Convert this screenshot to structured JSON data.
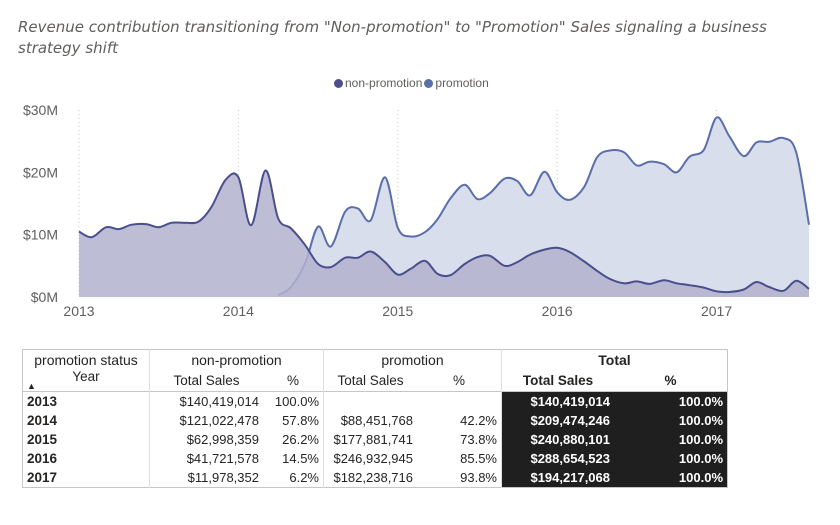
{
  "title": "Revenue contribution transitioning from \"Non-promotion\" to \"Promotion\" Sales signaling a business strategy shift",
  "legend": [
    {
      "name": "non-promotion",
      "color": "#4a4e8c"
    },
    {
      "name": "promotion",
      "color": "#5a6eaa"
    }
  ],
  "chart_data": {
    "type": "area",
    "title": "Revenue contribution transitioning from \"Non-promotion\" to \"Promotion\" Sales signaling a business strategy shift",
    "xlabel": "",
    "ylabel": "",
    "x_ticks": [
      "2013",
      "2014",
      "2015",
      "2016",
      "2017"
    ],
    "y_ticks": [
      "$0M",
      "$10M",
      "$20M",
      "$30M"
    ],
    "ylim": [
      0,
      30
    ],
    "xlim": [
      2013.0,
      2017.58
    ],
    "grid": "vertical dotted",
    "legend_position": "top-center",
    "series": [
      {
        "name": "non-promotion",
        "color": "#4a4e8c",
        "fill": "#b3b2cf",
        "points": [
          [
            2013.0,
            10.5
          ],
          [
            2013.08,
            9.6
          ],
          [
            2013.17,
            11.2
          ],
          [
            2013.25,
            10.9
          ],
          [
            2013.33,
            11.6
          ],
          [
            2013.42,
            11.7
          ],
          [
            2013.5,
            11.2
          ],
          [
            2013.58,
            11.9
          ],
          [
            2013.67,
            11.9
          ],
          [
            2013.75,
            12.1
          ],
          [
            2013.83,
            14.4
          ],
          [
            2013.92,
            18.8
          ],
          [
            2014.0,
            19.2
          ],
          [
            2014.08,
            11.5
          ],
          [
            2014.17,
            20.3
          ],
          [
            2014.25,
            12.6
          ],
          [
            2014.33,
            11.0
          ],
          [
            2014.42,
            8.3
          ],
          [
            2014.5,
            5.3
          ],
          [
            2014.58,
            4.8
          ],
          [
            2014.67,
            6.3
          ],
          [
            2014.75,
            6.3
          ],
          [
            2014.83,
            7.3
          ],
          [
            2014.92,
            5.6
          ],
          [
            2015.0,
            3.6
          ],
          [
            2015.08,
            4.5
          ],
          [
            2015.17,
            5.8
          ],
          [
            2015.25,
            3.7
          ],
          [
            2015.33,
            3.5
          ],
          [
            2015.42,
            5.3
          ],
          [
            2015.5,
            6.4
          ],
          [
            2015.58,
            6.6
          ],
          [
            2015.67,
            5.0
          ],
          [
            2015.75,
            5.6
          ],
          [
            2015.83,
            6.8
          ],
          [
            2015.92,
            7.6
          ],
          [
            2016.0,
            7.9
          ],
          [
            2016.08,
            7.2
          ],
          [
            2016.17,
            5.7
          ],
          [
            2016.25,
            4.2
          ],
          [
            2016.33,
            2.9
          ],
          [
            2016.42,
            2.2
          ],
          [
            2016.5,
            2.5
          ],
          [
            2016.58,
            2.1
          ],
          [
            2016.67,
            2.7
          ],
          [
            2016.75,
            2.2
          ],
          [
            2016.83,
            1.9
          ],
          [
            2016.92,
            1.5
          ],
          [
            2017.0,
            0.9
          ],
          [
            2017.08,
            0.8
          ],
          [
            2017.17,
            1.2
          ],
          [
            2017.25,
            2.4
          ],
          [
            2017.33,
            1.6
          ],
          [
            2017.42,
            1.0
          ],
          [
            2017.5,
            2.6
          ],
          [
            2017.58,
            1.3
          ]
        ]
      },
      {
        "name": "promotion",
        "color": "#5a6eaa",
        "fill": "#d9deec",
        "points": [
          [
            2014.25,
            0.3
          ],
          [
            2014.33,
            1.6
          ],
          [
            2014.42,
            5.5
          ],
          [
            2014.5,
            11.3
          ],
          [
            2014.58,
            8.1
          ],
          [
            2014.67,
            13.7
          ],
          [
            2014.75,
            14.2
          ],
          [
            2014.83,
            12.3
          ],
          [
            2014.92,
            19.2
          ],
          [
            2015.0,
            11.1
          ],
          [
            2015.08,
            9.7
          ],
          [
            2015.17,
            10.4
          ],
          [
            2015.25,
            12.5
          ],
          [
            2015.33,
            15.8
          ],
          [
            2015.42,
            18.0
          ],
          [
            2015.5,
            15.7
          ],
          [
            2015.58,
            16.7
          ],
          [
            2015.67,
            19.0
          ],
          [
            2015.75,
            18.6
          ],
          [
            2015.83,
            16.3
          ],
          [
            2015.92,
            20.1
          ],
          [
            2016.0,
            16.8
          ],
          [
            2016.08,
            15.6
          ],
          [
            2016.17,
            17.7
          ],
          [
            2016.25,
            22.4
          ],
          [
            2016.33,
            23.5
          ],
          [
            2016.42,
            23.2
          ],
          [
            2016.5,
            21.1
          ],
          [
            2016.58,
            21.7
          ],
          [
            2016.67,
            21.3
          ],
          [
            2016.75,
            20.0
          ],
          [
            2016.83,
            22.5
          ],
          [
            2016.92,
            23.6
          ],
          [
            2017.0,
            28.8
          ],
          [
            2017.08,
            25.8
          ],
          [
            2017.17,
            22.6
          ],
          [
            2017.25,
            24.8
          ],
          [
            2017.33,
            24.9
          ],
          [
            2017.42,
            25.5
          ],
          [
            2017.5,
            23.2
          ],
          [
            2017.58,
            11.6
          ]
        ]
      }
    ]
  },
  "table": {
    "corner_label": "promotion status",
    "row_header": "Year",
    "groups": [
      "non-promotion",
      "promotion",
      "Total"
    ],
    "measure_labels": [
      "Total Sales",
      "%",
      "Total Sales",
      "%",
      "Total Sales",
      "%"
    ],
    "rows": [
      {
        "year": "2013",
        "np_sales": "$140,419,014",
        "np_pct": "100.0%",
        "p_sales": "",
        "p_pct": "",
        "t_sales": "$140,419,014",
        "t_pct": "100.0%"
      },
      {
        "year": "2014",
        "np_sales": "$121,022,478",
        "np_pct": "57.8%",
        "p_sales": "$88,451,768",
        "p_pct": "42.2%",
        "t_sales": "$209,474,246",
        "t_pct": "100.0%"
      },
      {
        "year": "2015",
        "np_sales": "$62,998,359",
        "np_pct": "26.2%",
        "p_sales": "$177,881,741",
        "p_pct": "73.8%",
        "t_sales": "$240,880,101",
        "t_pct": "100.0%"
      },
      {
        "year": "2016",
        "np_sales": "$41,721,578",
        "np_pct": "14.5%",
        "p_sales": "$246,932,945",
        "p_pct": "85.5%",
        "t_sales": "$288,654,523",
        "t_pct": "100.0%"
      },
      {
        "year": "2017",
        "np_sales": "$11,978,352",
        "np_pct": "6.2%",
        "p_sales": "$182,238,716",
        "p_pct": "93.8%",
        "t_sales": "$194,217,068",
        "t_pct": "100.0%"
      }
    ]
  }
}
